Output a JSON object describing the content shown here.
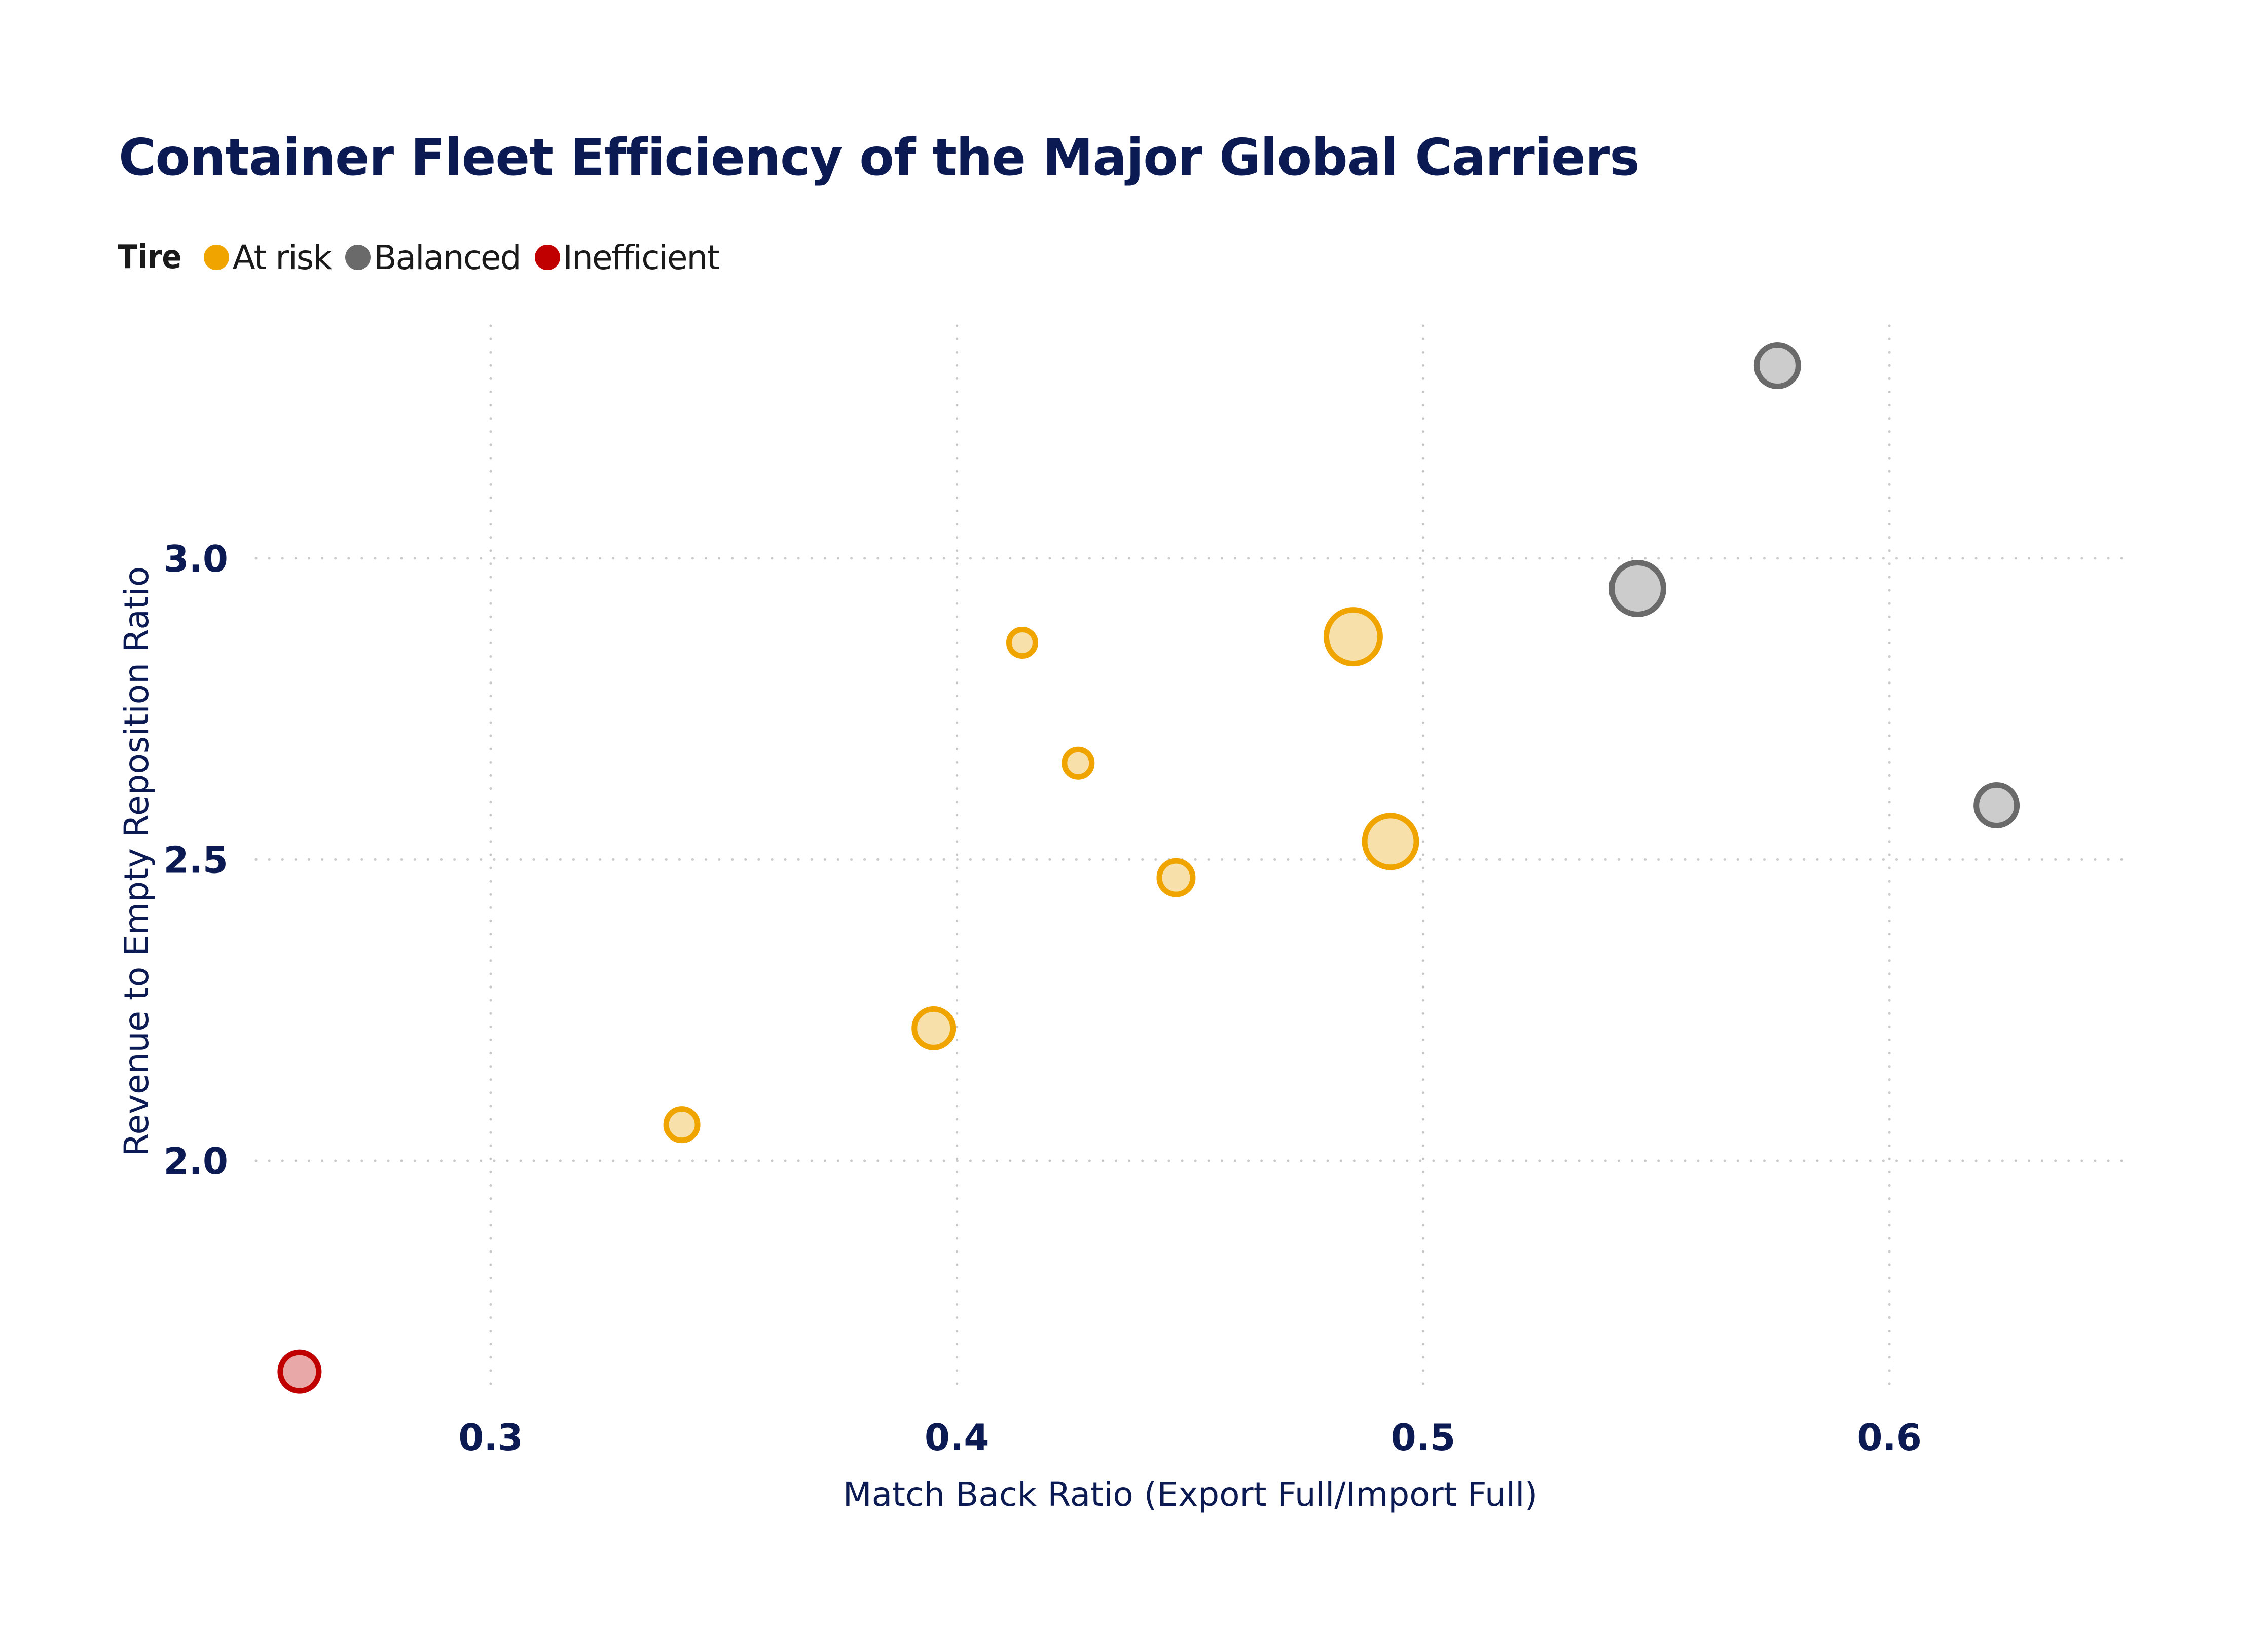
{
  "chart_data": {
    "type": "scatter",
    "title": "Container Fleet Efficiency of the Major Global Carriers",
    "xlabel": "Match Back Ratio (Export Full/Import Full)",
    "ylabel": "Revenue to Empty Reposition Ratio",
    "xlim": [
      0.26,
      0.65
    ],
    "ylim": [
      1.6,
      3.4
    ],
    "xticks": [
      0.3,
      0.4,
      0.5,
      0.6
    ],
    "xtick_labels": [
      "0.3",
      "0.4",
      "0.5",
      "0.6"
    ],
    "yticks": [
      2.0,
      2.5,
      3.0
    ],
    "ytick_labels": [
      "2.0",
      "2.5",
      "3.0"
    ],
    "grid": true,
    "grid_style": "dotted",
    "legend": {
      "title": "Tire",
      "placement": "top-left",
      "entries": [
        {
          "label": "At risk",
          "color": "#F0A400"
        },
        {
          "label": "Balanced",
          "color": "#6A6A6A"
        },
        {
          "label": "Inefficient",
          "color": "#C00000"
        }
      ]
    },
    "series": [
      {
        "name": "At risk",
        "stroke": "#F0A400",
        "fill": "#F8E0AA",
        "points": [
          {
            "x": 0.341,
            "y": 2.06,
            "size": 37
          },
          {
            "x": 0.395,
            "y": 2.22,
            "size": 44
          },
          {
            "x": 0.414,
            "y": 2.86,
            "size": 32
          },
          {
            "x": 0.426,
            "y": 2.66,
            "size": 33
          },
          {
            "x": 0.447,
            "y": 2.47,
            "size": 39
          },
          {
            "x": 0.485,
            "y": 2.87,
            "size": 59
          },
          {
            "x": 0.493,
            "y": 2.53,
            "size": 57
          }
        ]
      },
      {
        "name": "Balanced",
        "stroke": "#6A6A6A",
        "fill": "#CCCCCC",
        "points": [
          {
            "x": 0.546,
            "y": 2.95,
            "size": 57
          },
          {
            "x": 0.576,
            "y": 3.32,
            "size": 47
          },
          {
            "x": 0.623,
            "y": 2.59,
            "size": 46
          }
        ]
      },
      {
        "name": "Inefficient",
        "stroke": "#C00000",
        "fill": "#E8A8A8",
        "points": [
          {
            "x": 0.259,
            "y": 1.65,
            "size": 44
          }
        ]
      }
    ]
  },
  "colors": {
    "title": "#0B1A52",
    "axis_text": "#0B1A52",
    "gridline": "#C8C8C8"
  }
}
